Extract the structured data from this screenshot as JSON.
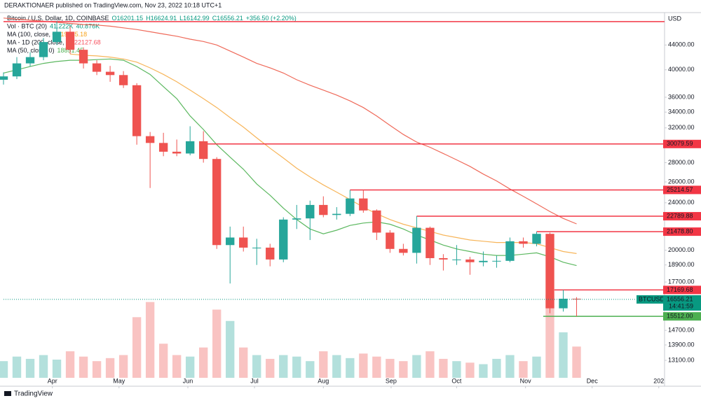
{
  "header": "DERAKTIONAER published on TradingView.com, Nov 23, 2022 10:18 UTC+1",
  "footer": "TradingView",
  "chart_data": {
    "type": "candlestick",
    "currency": "USD",
    "legend": [
      {
        "label": "Bitcoin / U.S. Dollar, 1D, COINBASE",
        "values": [
          "O16201.15",
          "H16624.91",
          "L16142.99",
          "C16556.21",
          "+356.50 (+2.20%)"
        ],
        "color": "#089981"
      },
      {
        "label": "Vol · BTC (20)",
        "values": [
          "41.222K",
          "40.876K"
        ],
        "color": "#089981"
      },
      {
        "label": "MA (100, close, 0)",
        "values": [
          "19745.18"
        ],
        "color": "#f7a21b"
      },
      {
        "label": "MA - 1D (200, close, 0)",
        "values": [
          "22127.68"
        ],
        "color": "#f7525f"
      },
      {
        "label": "MA (50, close, 0)",
        "values": [
          "18851.45"
        ],
        "color": "#4caf50"
      }
    ],
    "x": [
      0,
      6,
      12,
      18,
      24,
      30,
      36,
      42,
      48,
      54,
      60,
      66,
      72,
      78,
      84,
      90,
      96,
      102,
      108,
      114,
      120,
      126,
      132,
      138,
      144,
      150,
      156,
      162,
      168,
      174,
      180,
      186,
      192,
      198,
      204,
      210,
      216,
      222,
      228,
      234,
      240,
      246,
      252,
      258
    ],
    "xlim": [
      0,
      297.6
    ],
    "xticks": [
      {
        "value": 22,
        "label": "Apr"
      },
      {
        "value": 52,
        "label": "May"
      },
      {
        "value": 83,
        "label": "Jun"
      },
      {
        "value": 113,
        "label": "Jul"
      },
      {
        "value": 144,
        "label": "Aug"
      },
      {
        "value": 174.5,
        "label": "Sep"
      },
      {
        "value": 204,
        "label": "Oct"
      },
      {
        "value": 235,
        "label": "Nov"
      },
      {
        "value": 265,
        "label": "Dec"
      },
      {
        "value": 295,
        "label": "202"
      }
    ],
    "open": [
      38500,
      39000,
      41000,
      42000,
      44500,
      46300,
      43200,
      41000,
      39700,
      39200,
      37700,
      31000,
      30200,
      29200,
      29000,
      30400,
      28400,
      20400,
      21000,
      20200,
      20200,
      19300,
      22500,
      22600,
      23800,
      22900,
      23000,
      24400,
      23300,
      21400,
      20100,
      19800,
      21800,
      19400,
      19300,
      19300,
      19100,
      19200,
      19200,
      20700,
      20500,
      21300,
      16000,
      16600
    ],
    "high": [
      39600,
      42000,
      42800,
      45200,
      48200,
      47300,
      43600,
      41500,
      40600,
      39800,
      38000,
      31500,
      31400,
      30600,
      32200,
      31600,
      28600,
      21900,
      21900,
      20900,
      20500,
      22700,
      23800,
      24200,
      24600,
      23600,
      25200,
      25214.57,
      23400,
      21600,
      20500,
      22789.88,
      21900,
      19700,
      20400,
      19500,
      19900,
      19600,
      21000,
      21000,
      21478.8,
      21400,
      17169.68,
      16700
    ],
    "low": [
      37800,
      38600,
      40500,
      41500,
      44000,
      42500,
      40200,
      39200,
      38200,
      37300,
      30000,
      25400,
      28700,
      28700,
      28800,
      28000,
      20100,
      17600,
      19900,
      18900,
      18800,
      19100,
      21700,
      20800,
      22700,
      22500,
      22800,
      23100,
      20800,
      19800,
      19600,
      19000,
      18900,
      18500,
      18900,
      18200,
      18800,
      18700,
      19100,
      20200,
      20300,
      15700,
      15800,
      15512
    ],
    "close": [
      39000,
      41000,
      42000,
      44500,
      46300,
      43200,
      41000,
      39700,
      39200,
      37700,
      31000,
      30200,
      29200,
      29000,
      30400,
      28400,
      20400,
      21000,
      20200,
      20200,
      19300,
      22500,
      22600,
      23800,
      22900,
      23000,
      24400,
      23300,
      21400,
      20100,
      19800,
      21800,
      19400,
      19300,
      19300,
      19100,
      19200,
      19200,
      20700,
      20500,
      21300,
      16000,
      16600,
      16556.21
    ],
    "up_color": "#26a69a",
    "down_color": "#ef5350",
    "ylim": [
      12250,
      49300
    ],
    "log": true,
    "yticks": [
      {
        "value": 44000,
        "label": "44000.00"
      },
      {
        "value": 40000,
        "label": "40000.00"
      },
      {
        "value": 36000,
        "label": "36000.00"
      },
      {
        "value": 34000,
        "label": "34000.00"
      },
      {
        "value": 32000,
        "label": "32000.00"
      },
      {
        "value": 28000,
        "label": "28000.00"
      },
      {
        "value": 26000,
        "label": "26000.00"
      },
      {
        "value": 24000,
        "label": "24000.00"
      },
      {
        "value": 20000,
        "label": "20000.00"
      },
      {
        "value": 18900,
        "label": "18900.00"
      },
      {
        "value": 17700,
        "label": "17700.00"
      },
      {
        "value": 14700,
        "label": "14700.00"
      },
      {
        "value": 13900,
        "label": "13900.00"
      },
      {
        "value": 13100,
        "label": "13100.00"
      }
    ],
    "ma": [
      {
        "name": "MA - 1D (200, close, 0)",
        "color": "#ef6a5a",
        "values": [
          48800,
          48600,
          48400,
          48200,
          48000,
          47800,
          47600,
          47500,
          47300,
          47000,
          46700,
          46300,
          45900,
          45500,
          45000,
          44600,
          44000,
          43000,
          42000,
          41000,
          40300,
          39500,
          38500,
          37700,
          37000,
          36300,
          35500,
          34600,
          33500,
          32300,
          31200,
          30300,
          29700,
          29000,
          28300,
          27600,
          26800,
          26100,
          25300,
          24600,
          23900,
          23200,
          22600,
          22127.68
        ]
      },
      {
        "name": "MA (100, close, 0)",
        "color": "#f7b55a",
        "values": [
          null,
          null,
          null,
          null,
          null,
          42500,
          42300,
          42200,
          42000,
          41700,
          41200,
          40300,
          39300,
          38200,
          37000,
          35800,
          34600,
          33300,
          32100,
          30800,
          29600,
          28500,
          27400,
          26500,
          25700,
          25000,
          24300,
          23600,
          23000,
          22500,
          22100,
          21800,
          21500,
          21200,
          21000,
          20800,
          20700,
          20600,
          20600,
          20600,
          20500,
          20200,
          19900,
          19745.18
        ]
      },
      {
        "name": "MA (50, close, 0)",
        "color": "#5cb860",
        "values": [
          39500,
          40000,
          40500,
          41000,
          41300,
          41500,
          41500,
          41600,
          41700,
          41500,
          40500,
          39300,
          37500,
          35800,
          33500,
          31800,
          30000,
          28600,
          27300,
          25800,
          24700,
          23500,
          22500,
          21700,
          21300,
          21600,
          22000,
          22200,
          22300,
          22100,
          21700,
          21200,
          20800,
          20400,
          20100,
          19900,
          19700,
          19600,
          19600,
          19700,
          19800,
          19500,
          19100,
          18851.45
        ]
      }
    ],
    "volume": {
      "ylim": [
        0,
        120
      ],
      "values": [
        22,
        28,
        25,
        30,
        24,
        35,
        28,
        22,
        26,
        30,
        80,
        100,
        45,
        30,
        28,
        40,
        90,
        75,
        40,
        30,
        25,
        30,
        28,
        22,
        35,
        30,
        26,
        32,
        28,
        25,
        22,
        30,
        35,
        25,
        22,
        20,
        18,
        25,
        30,
        22,
        28,
        110,
        60,
        41.222
      ]
    },
    "levels": [
      {
        "value": 48130,
        "from": 0,
        "color": "#f23645"
      },
      {
        "value": 30079.59,
        "from": 90,
        "color": "#f23645"
      },
      {
        "value": 25214.57,
        "from": 156,
        "color": "#f23645"
      },
      {
        "value": 22789.88,
        "from": 186,
        "color": "#f23645"
      },
      {
        "value": 21478.8,
        "label": "21478.80",
        "from": 240,
        "color": "#f23645"
      },
      {
        "value": 17169.68,
        "from": 248,
        "color": "#f23645"
      },
      {
        "value": 15512,
        "label": "15512.00",
        "from": 243,
        "color": "#4caf50"
      }
    ],
    "last": {
      "symbol": "BTCUSD",
      "value": 16556.21,
      "countdown": "14:41:59",
      "color": "#089981"
    }
  }
}
